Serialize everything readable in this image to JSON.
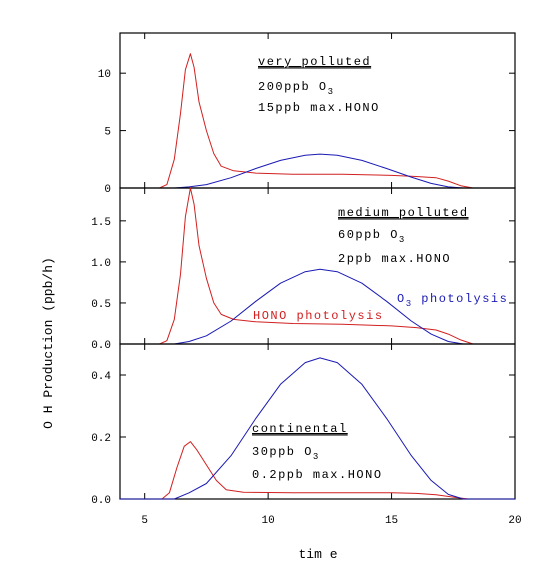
{
  "chart_data": {
    "type": "line",
    "xlabel": "tim e",
    "ylabel": "O H  Production (ppb/h)",
    "xlim": [
      4,
      20
    ],
    "xticks": [
      5,
      10,
      15,
      20
    ],
    "panels": [
      {
        "name": "very polluted",
        "ylim": [
          0,
          13.5
        ],
        "yticks": [
          {
            "v": 0,
            "label": "0"
          },
          {
            "v": 5,
            "label": "5"
          },
          {
            "v": 10,
            "label": "10"
          }
        ],
        "annotation": {
          "heading": "very polluted",
          "line1_main": "200ppb O",
          "line1_sub": "3",
          "line2": "15ppb max.HONO"
        },
        "series": [
          {
            "color": "#d22020",
            "points": [
              [
                4,
                0
              ],
              [
                5.6,
                0
              ],
              [
                5.9,
                0.3
              ],
              [
                6.2,
                2.5
              ],
              [
                6.45,
                6.5
              ],
              [
                6.65,
                10.3
              ],
              [
                6.85,
                11.7
              ],
              [
                7.0,
                10.5
              ],
              [
                7.2,
                7.5
              ],
              [
                7.5,
                5.0
              ],
              [
                7.8,
                3.0
              ],
              [
                8.1,
                1.9
              ],
              [
                8.6,
                1.5
              ],
              [
                9.5,
                1.3
              ],
              [
                11,
                1.2
              ],
              [
                13,
                1.2
              ],
              [
                15,
                1.1
              ],
              [
                16,
                1.0
              ],
              [
                16.8,
                0.9
              ],
              [
                17.3,
                0.6
              ],
              [
                17.8,
                0.2
              ],
              [
                18.3,
                0
              ],
              [
                20,
                0
              ]
            ]
          },
          {
            "color": "#1a1ab4",
            "points": [
              [
                4,
                0
              ],
              [
                6.2,
                0
              ],
              [
                6.8,
                0.1
              ],
              [
                7.5,
                0.3
              ],
              [
                8.5,
                0.9
              ],
              [
                9.5,
                1.7
              ],
              [
                10.5,
                2.4
              ],
              [
                11.5,
                2.85
              ],
              [
                12.1,
                2.95
              ],
              [
                12.8,
                2.85
              ],
              [
                13.8,
                2.4
              ],
              [
                14.8,
                1.7
              ],
              [
                15.8,
                0.95
              ],
              [
                16.6,
                0.4
              ],
              [
                17.3,
                0.1
              ],
              [
                17.9,
                0
              ],
              [
                20,
                0
              ]
            ]
          }
        ]
      },
      {
        "name": "medium polluted",
        "ylim": [
          0,
          1.9
        ],
        "yticks": [
          {
            "v": 0,
            "label": "0.0"
          },
          {
            "v": 0.5,
            "label": "0.5"
          },
          {
            "v": 1.0,
            "label": "1.0"
          },
          {
            "v": 1.5,
            "label": "1.5"
          }
        ],
        "annotation": {
          "heading": "medium polluted",
          "line1_main": "60ppb O",
          "line1_sub": "3",
          "line2": "2ppb max.HONO"
        },
        "series_labels": [
          {
            "text": "HONO photolysis",
            "color": "#d22020"
          },
          {
            "text_main": "O",
            "text_sub": "3",
            "text_rest": " photolysis",
            "color": "#1a1ab4"
          }
        ],
        "series": [
          {
            "color": "#d22020",
            "points": [
              [
                4,
                0
              ],
              [
                5.6,
                0
              ],
              [
                5.9,
                0.04
              ],
              [
                6.2,
                0.3
              ],
              [
                6.45,
                0.85
              ],
              [
                6.65,
                1.55
              ],
              [
                6.85,
                1.9
              ],
              [
                7.0,
                1.7
              ],
              [
                7.2,
                1.2
              ],
              [
                7.5,
                0.8
              ],
              [
                7.8,
                0.5
              ],
              [
                8.1,
                0.36
              ],
              [
                8.6,
                0.3
              ],
              [
                9.5,
                0.27
              ],
              [
                11,
                0.25
              ],
              [
                13,
                0.24
              ],
              [
                15,
                0.22
              ],
              [
                16,
                0.2
              ],
              [
                16.8,
                0.17
              ],
              [
                17.3,
                0.12
              ],
              [
                17.8,
                0.05
              ],
              [
                18.3,
                0
              ],
              [
                20,
                0
              ]
            ]
          },
          {
            "color": "#1a1ab4",
            "points": [
              [
                4,
                0
              ],
              [
                6.2,
                0
              ],
              [
                6.8,
                0.03
              ],
              [
                7.5,
                0.1
              ],
              [
                8.5,
                0.28
              ],
              [
                9.5,
                0.52
              ],
              [
                10.5,
                0.74
              ],
              [
                11.5,
                0.88
              ],
              [
                12.1,
                0.91
              ],
              [
                12.8,
                0.88
              ],
              [
                13.8,
                0.74
              ],
              [
                14.8,
                0.52
              ],
              [
                15.8,
                0.28
              ],
              [
                16.6,
                0.12
              ],
              [
                17.3,
                0.03
              ],
              [
                17.9,
                0
              ],
              [
                20,
                0
              ]
            ]
          }
        ]
      },
      {
        "name": "continental",
        "ylim": [
          0,
          0.5
        ],
        "yticks": [
          {
            "v": 0,
            "label": "0.0"
          },
          {
            "v": 0.2,
            "label": "0.2"
          },
          {
            "v": 0.4,
            "label": "0.4"
          }
        ],
        "annotation": {
          "heading": "continental",
          "line1_main": "30ppb O",
          "line1_sub": "3",
          "line2": "0.2ppb max.HONO"
        },
        "series": [
          {
            "color": "#d22020",
            "points": [
              [
                4,
                0
              ],
              [
                5.7,
                0
              ],
              [
                6.0,
                0.02
              ],
              [
                6.3,
                0.1
              ],
              [
                6.6,
                0.17
              ],
              [
                6.85,
                0.185
              ],
              [
                7.1,
                0.16
              ],
              [
                7.5,
                0.11
              ],
              [
                7.9,
                0.06
              ],
              [
                8.3,
                0.03
              ],
              [
                9,
                0.022
              ],
              [
                11,
                0.02
              ],
              [
                13,
                0.02
              ],
              [
                15,
                0.02
              ],
              [
                16,
                0.018
              ],
              [
                16.8,
                0.014
              ],
              [
                17.5,
                0.006
              ],
              [
                18.1,
                0
              ],
              [
                20,
                0
              ]
            ]
          },
          {
            "color": "#1a1ab4",
            "points": [
              [
                4,
                0
              ],
              [
                6.2,
                0
              ],
              [
                6.8,
                0.02
              ],
              [
                7.5,
                0.05
              ],
              [
                8.5,
                0.14
              ],
              [
                9.5,
                0.26
              ],
              [
                10.5,
                0.37
              ],
              [
                11.5,
                0.44
              ],
              [
                12.1,
                0.455
              ],
              [
                12.8,
                0.44
              ],
              [
                13.8,
                0.37
              ],
              [
                14.8,
                0.26
              ],
              [
                15.8,
                0.14
              ],
              [
                16.6,
                0.06
              ],
              [
                17.3,
                0.015
              ],
              [
                17.9,
                0
              ],
              [
                20,
                0
              ]
            ]
          }
        ]
      }
    ]
  }
}
